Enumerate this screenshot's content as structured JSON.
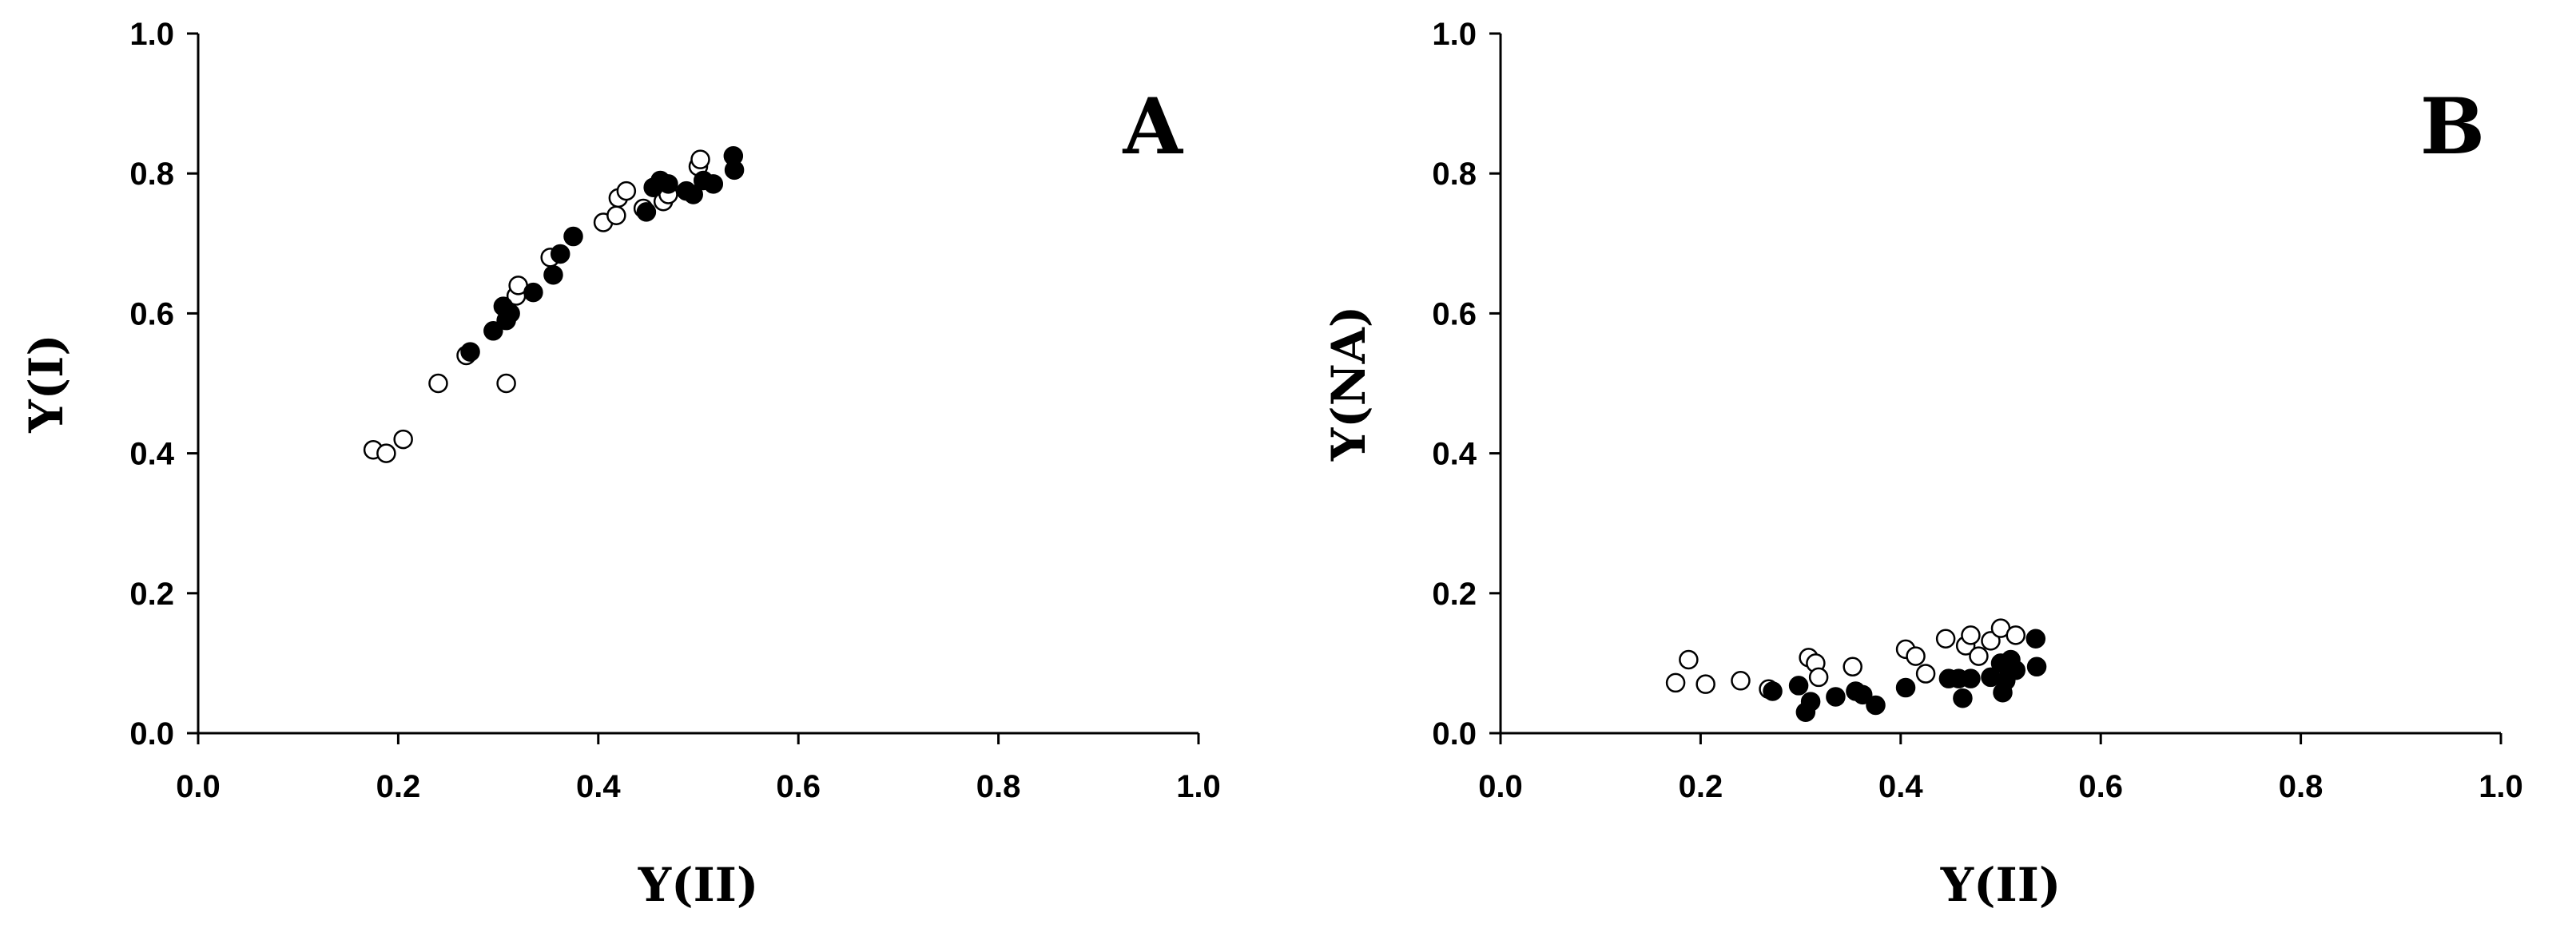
{
  "chart_data": [
    {
      "type": "scatter",
      "panel_label": "A",
      "xlabel": "Y(II)",
      "ylabel": "Y(I)",
      "xlim": [
        0.0,
        1.0
      ],
      "ylim": [
        0.0,
        1.0
      ],
      "xticks": [
        "0.0",
        "0.2",
        "0.4",
        "0.6",
        "0.8",
        "1.0"
      ],
      "yticks": [
        "0.0",
        "0.2",
        "0.4",
        "0.6",
        "0.8",
        "1.0"
      ],
      "grid": false,
      "series": [
        {
          "marker": "open-circle",
          "color": "#000000",
          "points": [
            [
              0.175,
              0.405
            ],
            [
              0.188,
              0.4
            ],
            [
              0.205,
              0.42
            ],
            [
              0.24,
              0.5
            ],
            [
              0.268,
              0.54
            ],
            [
              0.308,
              0.5
            ],
            [
              0.318,
              0.625
            ],
            [
              0.32,
              0.64
            ],
            [
              0.352,
              0.68
            ],
            [
              0.405,
              0.73
            ],
            [
              0.418,
              0.74
            ],
            [
              0.42,
              0.765
            ],
            [
              0.428,
              0.775
            ],
            [
              0.445,
              0.75
            ],
            [
              0.465,
              0.76
            ],
            [
              0.47,
              0.77
            ],
            [
              0.5,
              0.81
            ],
            [
              0.502,
              0.82
            ]
          ]
        },
        {
          "marker": "filled-circle",
          "color": "#000000",
          "points": [
            [
              0.272,
              0.545
            ],
            [
              0.295,
              0.575
            ],
            [
              0.305,
              0.61
            ],
            [
              0.308,
              0.59
            ],
            [
              0.312,
              0.6
            ],
            [
              0.335,
              0.63
            ],
            [
              0.355,
              0.655
            ],
            [
              0.362,
              0.685
            ],
            [
              0.375,
              0.71
            ],
            [
              0.448,
              0.745
            ],
            [
              0.455,
              0.78
            ],
            [
              0.462,
              0.79
            ],
            [
              0.47,
              0.785
            ],
            [
              0.488,
              0.775
            ],
            [
              0.495,
              0.77
            ],
            [
              0.505,
              0.79
            ],
            [
              0.515,
              0.785
            ],
            [
              0.535,
              0.825
            ],
            [
              0.536,
              0.805
            ]
          ]
        }
      ]
    },
    {
      "type": "scatter",
      "panel_label": "B",
      "xlabel": "Y(II)",
      "ylabel": "Y(NA)",
      "xlim": [
        0.0,
        1.0
      ],
      "ylim": [
        0.0,
        1.0
      ],
      "xticks": [
        "0.0",
        "0.2",
        "0.4",
        "0.6",
        "0.8",
        "1.0"
      ],
      "yticks": [
        "0.0",
        "0.2",
        "0.4",
        "0.6",
        "0.8",
        "1.0"
      ],
      "grid": false,
      "series": [
        {
          "marker": "open-circle",
          "color": "#000000",
          "points": [
            [
              0.175,
              0.072
            ],
            [
              0.188,
              0.105
            ],
            [
              0.205,
              0.07
            ],
            [
              0.24,
              0.075
            ],
            [
              0.268,
              0.063
            ],
            [
              0.308,
              0.108
            ],
            [
              0.315,
              0.1
            ],
            [
              0.318,
              0.08
            ],
            [
              0.352,
              0.095
            ],
            [
              0.405,
              0.12
            ],
            [
              0.415,
              0.11
            ],
            [
              0.425,
              0.085
            ],
            [
              0.445,
              0.135
            ],
            [
              0.465,
              0.125
            ],
            [
              0.47,
              0.14
            ],
            [
              0.478,
              0.11
            ],
            [
              0.49,
              0.132
            ],
            [
              0.5,
              0.15
            ],
            [
              0.515,
              0.14
            ]
          ]
        },
        {
          "marker": "filled-circle",
          "color": "#000000",
          "points": [
            [
              0.272,
              0.06
            ],
            [
              0.298,
              0.068
            ],
            [
              0.305,
              0.03
            ],
            [
              0.31,
              0.045
            ],
            [
              0.335,
              0.052
            ],
            [
              0.355,
              0.06
            ],
            [
              0.362,
              0.055
            ],
            [
              0.375,
              0.04
            ],
            [
              0.405,
              0.065
            ],
            [
              0.448,
              0.078
            ],
            [
              0.458,
              0.078
            ],
            [
              0.462,
              0.05
            ],
            [
              0.47,
              0.078
            ],
            [
              0.49,
              0.08
            ],
            [
              0.5,
              0.1
            ],
            [
              0.502,
              0.058
            ],
            [
              0.505,
              0.075
            ],
            [
              0.51,
              0.105
            ],
            [
              0.515,
              0.09
            ],
            [
              0.535,
              0.135
            ],
            [
              0.536,
              0.095
            ]
          ]
        }
      ]
    }
  ]
}
